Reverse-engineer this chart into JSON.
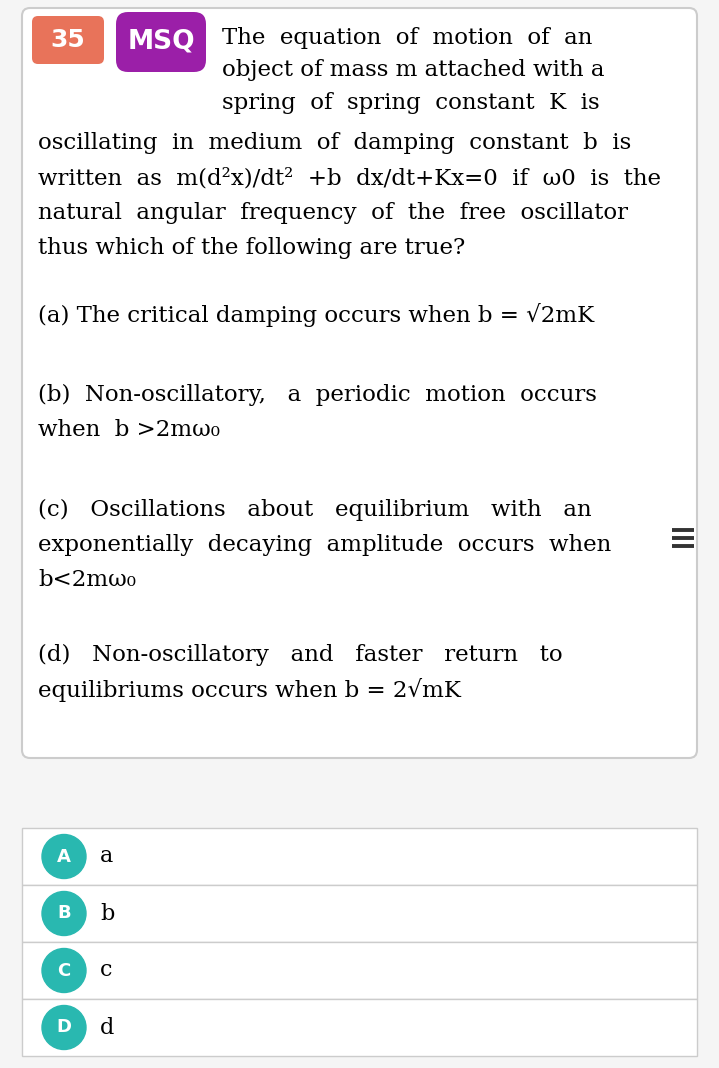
{
  "bg_color": "#f5f5f5",
  "card_bg": "#ffffff",
  "card_border": "#cccccc",
  "number_box_color": "#e8735a",
  "number_box_text": "35",
  "msq_box_color": "#9b1fa8",
  "msq_text": "MSQ",
  "header_line1": "The  equation  of  motion  of  an",
  "header_line2": "object of mass m attached with a",
  "header_line3": "spring  of  spring  constant  K  is",
  "body_line1": "oscillating  in  medium  of  damping  constant  b  is",
  "body_line2": "written  as  m(d²x)/dt²  +b  dx/dt+Kx=0  if  ω0  is  the",
  "body_line3": "natural  angular  frequency  of  the  free  oscillator",
  "body_line4": "thus which of the following are true?",
  "opt_a": "(a) The critical damping occurs when b = √2mK",
  "opt_b1": "(b)  Non-oscillatory,   a  periodic  motion  occurs",
  "opt_b2": "when  b >2mω₀",
  "opt_c1": "(c)   Oscillations   about   equilibrium   with   an",
  "opt_c2": "exponentially  decaying  amplitude  occurs  when",
  "opt_c3": "b<2mω₀",
  "opt_d1": "(d)   Non-oscillatory   and   faster   return   to",
  "opt_d2": "equilibriums occurs when b = 2√mK",
  "answer_options": [
    "a",
    "b",
    "c",
    "d"
  ],
  "answer_labels": [
    "A",
    "B",
    "C",
    "D"
  ],
  "answer_circle_color": "#29b8b0",
  "hamburger_color": "#333333",
  "fs_body": 16.5,
  "fs_badge_num": 18,
  "fs_badge_msq": 19,
  "fs_answer": 16
}
